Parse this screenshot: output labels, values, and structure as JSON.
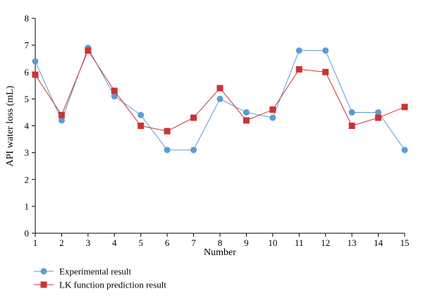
{
  "chart_data": {
    "type": "line",
    "title": "",
    "xlabel": "Number",
    "ylabel": "API water loss (mL)",
    "x": [
      1,
      2,
      3,
      4,
      5,
      6,
      7,
      8,
      9,
      10,
      11,
      12,
      13,
      14,
      15
    ],
    "xlim": [
      1,
      15
    ],
    "ylim": [
      0,
      8
    ],
    "yticks": [
      0,
      1,
      2,
      3,
      4,
      5,
      6,
      7,
      8
    ],
    "grid": false,
    "legend_position": "bottom-left",
    "series": [
      {
        "name": "Experimental result",
        "marker": "circle",
        "color": "#5b9bd5",
        "values": [
          6.4,
          4.2,
          6.9,
          5.1,
          4.4,
          3.1,
          3.1,
          5.0,
          4.5,
          4.3,
          6.8,
          6.8,
          4.5,
          4.5,
          3.1
        ]
      },
      {
        "name": "LK function prediction result",
        "marker": "square",
        "color": "#cc3333",
        "values": [
          5.9,
          4.4,
          6.8,
          5.3,
          4.0,
          3.8,
          4.3,
          5.4,
          4.2,
          4.6,
          6.1,
          6.0,
          4.0,
          4.3,
          4.7
        ]
      }
    ]
  }
}
